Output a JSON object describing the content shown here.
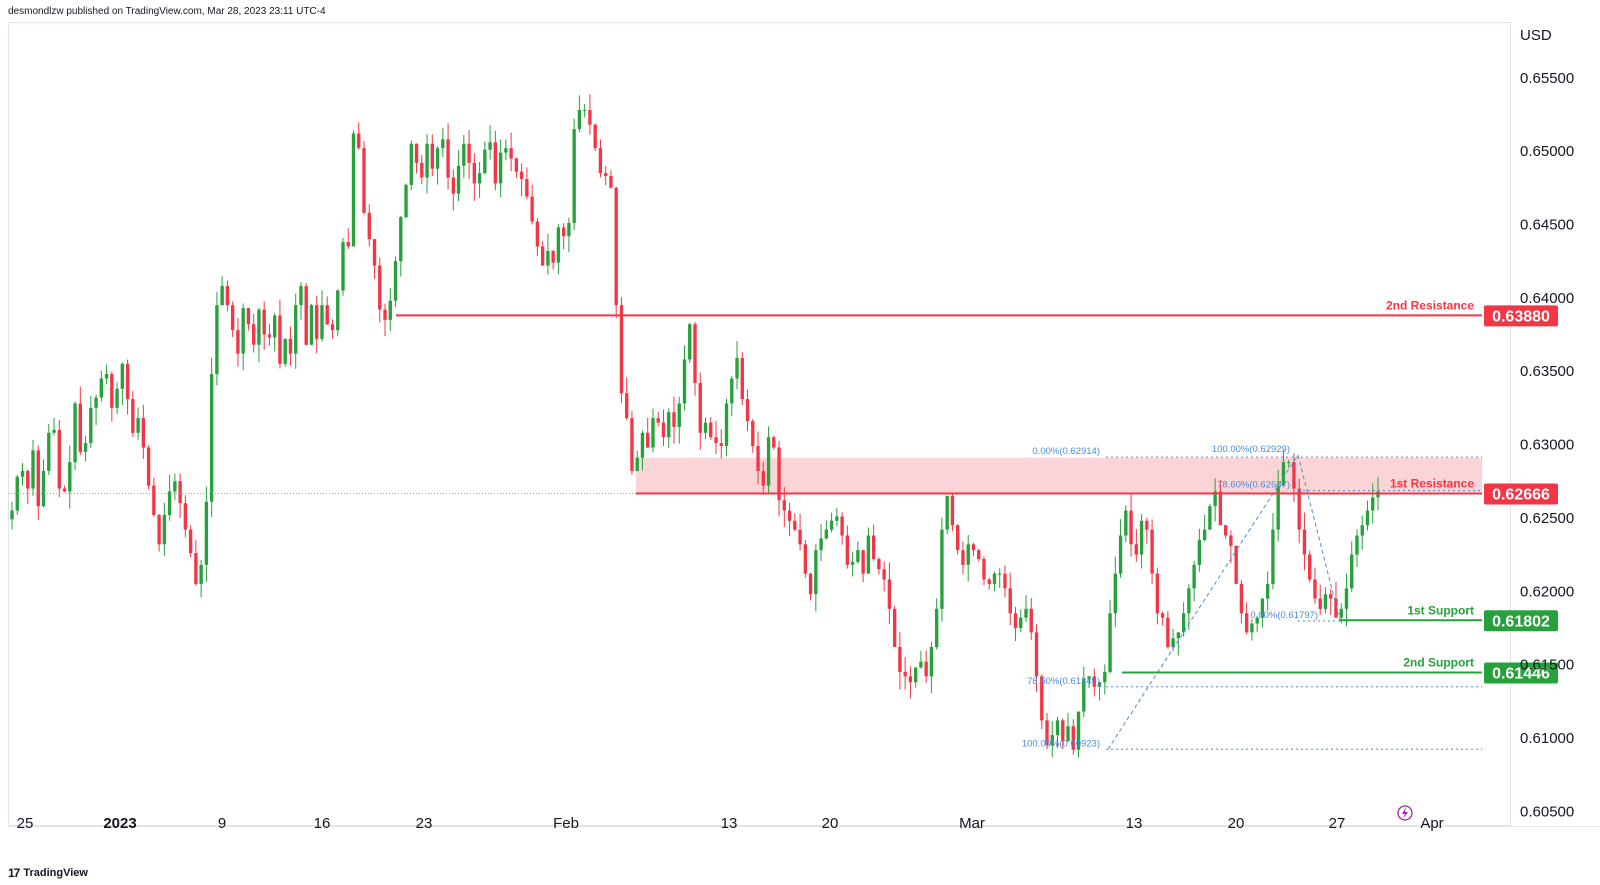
{
  "header": {
    "publish_note": "desmondlzw published on TradingView.com, Mar 28, 2023 23:11 UTC-4"
  },
  "footer": {
    "brand": "TradingView",
    "logo_glyph": "17"
  },
  "chart_data": {
    "type": "candlestick",
    "currency": "USD",
    "y_ticks": [
      "0.65500",
      "0.65000",
      "0.64500",
      "0.64000",
      "0.63500",
      "0.63000",
      "0.62500",
      "0.62000",
      "0.61500",
      "0.61000",
      "0.60500"
    ],
    "ylim": [
      0.604,
      0.6588
    ],
    "x_ticks": [
      {
        "label": "25",
        "bold": false
      },
      {
        "label": "2023",
        "bold": true
      },
      {
        "label": "9",
        "bold": false
      },
      {
        "label": "16",
        "bold": false
      },
      {
        "label": "23",
        "bold": false
      },
      {
        "label": "Feb",
        "bold": false
      },
      {
        "label": "13",
        "bold": false
      },
      {
        "label": "20",
        "bold": false
      },
      {
        "label": "Mar",
        "bold": false
      },
      {
        "label": "13",
        "bold": false
      },
      {
        "label": "20",
        "bold": false
      },
      {
        "label": "27",
        "bold": false
      },
      {
        "label": "Apr",
        "bold": false
      }
    ],
    "levels": [
      {
        "name": "2nd Resistance",
        "value": "0.63880",
        "price": 0.6388,
        "color": "#f23645"
      },
      {
        "name": "1st Resistance",
        "value": "0.62666",
        "price": 0.62666,
        "color": "#f23645"
      },
      {
        "name": "1st Support",
        "value": "0.61802",
        "price": 0.61802,
        "color": "#26a13b"
      },
      {
        "name": "2nd Support",
        "value": "0.61446",
        "price": 0.61446,
        "color": "#26a13b"
      }
    ],
    "resistance_zone": [
      0.62666,
      0.6291
    ],
    "fib_labels": [
      {
        "text": "0.00%(0.62914)",
        "price": 0.62914
      },
      {
        "text": "100.00%(0.62929)",
        "price": 0.62929
      },
      {
        "text": "78.60%(0.62687)",
        "price": 0.62687
      },
      {
        "text": "0.00%(0.61797)",
        "price": 0.61797
      },
      {
        "text": "78.60%(0.61349)",
        "price": 0.61349
      },
      {
        "text": "100.00%(0.60923)",
        "price": 0.60923
      }
    ],
    "price_path": [
      0.6255,
      0.6278,
      0.6282,
      0.627,
      0.6296,
      0.6258,
      0.6282,
      0.6308,
      0.631,
      0.627,
      0.6268,
      0.6288,
      0.6328,
      0.6295,
      0.6301,
      0.6325,
      0.6332,
      0.6345,
      0.6348,
      0.6325,
      0.6338,
      0.6355,
      0.6331,
      0.6308,
      0.6318,
      0.6298,
      0.6272,
      0.6252,
      0.6232,
      0.6252,
      0.6268,
      0.6275,
      0.626,
      0.6242,
      0.6226,
      0.6205,
      0.6218,
      0.6261,
      0.6348,
      0.6395,
      0.6408,
      0.6395,
      0.6378,
      0.6362,
      0.6393,
      0.6382,
      0.6368,
      0.6392,
      0.6375,
      0.6373,
      0.6388,
      0.6355,
      0.6372,
      0.6362,
      0.6395,
      0.6408,
      0.6368,
      0.6395,
      0.6372,
      0.6395,
      0.6382,
      0.6378,
      0.6405,
      0.6438,
      0.6435,
      0.6512,
      0.6502,
      0.6458,
      0.644,
      0.6422,
      0.6392,
      0.6385,
      0.6398,
      0.6425,
      0.6455,
      0.6477,
      0.6505,
      0.6492,
      0.6482,
      0.6505,
      0.6488,
      0.6502,
      0.6508,
      0.6482,
      0.6471,
      0.649,
      0.6505,
      0.6492,
      0.6478,
      0.6485,
      0.6501,
      0.6506,
      0.6478,
      0.6499,
      0.6502,
      0.6495,
      0.6486,
      0.6481,
      0.6469,
      0.6452,
      0.6435,
      0.6422,
      0.6432,
      0.6424,
      0.6448,
      0.6442,
      0.6451,
      0.6515,
      0.6528,
      0.6528,
      0.6518,
      0.6502,
      0.6485,
      0.6483,
      0.6475,
      0.6395,
      0.6335,
      0.6318,
      0.6282,
      0.6291,
      0.6308,
      0.6298,
      0.6318,
      0.6315,
      0.6305,
      0.6322,
      0.6312,
      0.6328,
      0.6358,
      0.6382,
      0.6342,
      0.6308,
      0.6315,
      0.6305,
      0.6301,
      0.6299,
      0.6328,
      0.6345,
      0.6359,
      0.6331,
      0.6316,
      0.6299,
      0.6282,
      0.6272,
      0.6305,
      0.6298,
      0.6262,
      0.6255,
      0.6248,
      0.6242,
      0.6232,
      0.6212,
      0.6198,
      0.6228,
      0.6236,
      0.6242,
      0.6248,
      0.6251,
      0.6238,
      0.6218,
      0.622,
      0.6228,
      0.6212,
      0.6238,
      0.6222,
      0.6215,
      0.6208,
      0.6188,
      0.6162,
      0.6145,
      0.6142,
      0.6138,
      0.6148,
      0.6152,
      0.6142,
      0.6162,
      0.6188,
      0.6242,
      0.6265,
      0.6245,
      0.6228,
      0.6218,
      0.6232,
      0.6228,
      0.6222,
      0.6208,
      0.6205,
      0.6212,
      0.6212,
      0.6202,
      0.6185,
      0.6175,
      0.6182,
      0.6188,
      0.6172,
      0.6142,
      0.6112,
      0.6095,
      0.6102,
      0.6112,
      0.6098,
      0.6108,
      0.6092,
      0.6118,
      0.614,
      0.6142,
      0.6135,
      0.6138,
      0.6145,
      0.6185,
      0.6212,
      0.6238,
      0.6255,
      0.6232,
      0.6225,
      0.6248,
      0.6242,
      0.6212,
      0.6185,
      0.6182,
      0.6162,
      0.6168,
      0.6172,
      0.6185,
      0.6202,
      0.6218,
      0.6235,
      0.6242,
      0.6258,
      0.6268,
      0.6245,
      0.6238,
      0.6231,
      0.6205,
      0.6185,
      0.6172,
      0.6178,
      0.6182,
      0.6195,
      0.6205,
      0.6242,
      0.6272,
      0.6288,
      0.6288,
      0.627,
      0.6242,
      0.6225,
      0.6208,
      0.6195,
      0.6188,
      0.6198,
      0.6195,
      0.6182,
      0.6188,
      0.6202,
      0.6225,
      0.6238,
      0.6245,
      0.6255,
      0.6264,
      0.6268
    ]
  }
}
